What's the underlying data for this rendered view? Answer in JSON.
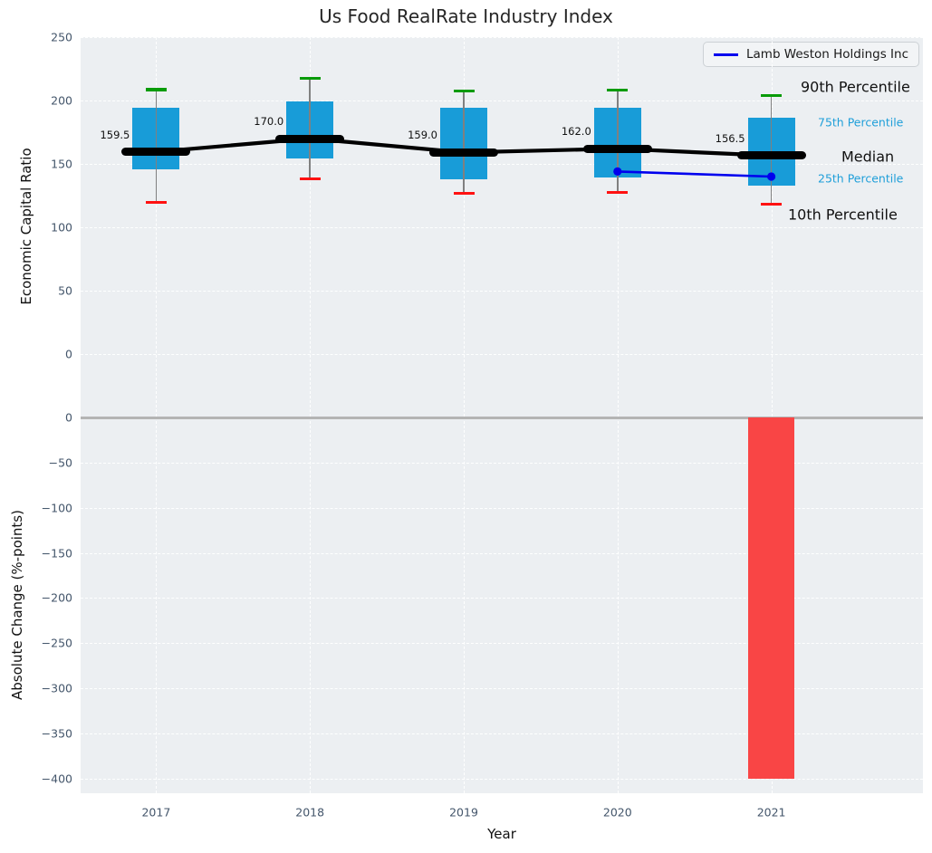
{
  "figure": {
    "title": "Us Food RealRate Industry Index",
    "background": "#ffffff",
    "axes_background": "#eceff2"
  },
  "chart_data": [
    {
      "type": "box",
      "title": "Us Food RealRate Industry Index",
      "ylabel": "Economic Capital Ratio",
      "ylim": [
        -50,
        250
      ],
      "yticks": [
        250,
        200,
        150,
        100,
        50,
        0
      ],
      "categories": [
        "2017",
        "2018",
        "2019",
        "2020",
        "2021"
      ],
      "grid": true,
      "legend_position": "upper right",
      "legend_entries": [
        "Lamb Weston Holdings Inc"
      ],
      "boxes": [
        {
          "category": "2017",
          "p90": 208.5,
          "p75": 194.5,
          "median": 159.5,
          "p25": 146,
          "p10": 119.5
        },
        {
          "category": "2018",
          "p90": 217.5,
          "p75": 199.5,
          "median": 170.0,
          "p25": 154,
          "p10": 138
        },
        {
          "category": "2019",
          "p90": 207.5,
          "p75": 194,
          "median": 159.0,
          "p25": 137.5,
          "p10": 127
        },
        {
          "category": "2020",
          "p90": 208,
          "p75": 194.5,
          "median": 162.0,
          "p25": 139.5,
          "p10": 127.5
        },
        {
          "category": "2021",
          "p90": 204,
          "p75": 186.5,
          "median": 156.5,
          "p25": 132.5,
          "p10": 118
        }
      ],
      "median_labels": [
        "159.5",
        "170.0",
        "159.0",
        "162.0",
        "156.5"
      ],
      "series": [
        {
          "name": "Median",
          "x": [
            "2017",
            "2018",
            "2019",
            "2020",
            "2021"
          ],
          "values": [
            159.5,
            170.0,
            159.0,
            162.0,
            156.5
          ],
          "color": "#000000"
        },
        {
          "name": "Lamb Weston Holdings Inc",
          "x": [
            "2020",
            "2021"
          ],
          "values": [
            144,
            140
          ],
          "color": "#0000ee"
        }
      ],
      "annotations": [
        {
          "text": "90th Percentile",
          "style": "large"
        },
        {
          "text": "75th Percentile",
          "style": "small-blue"
        },
        {
          "text": "Median",
          "style": "large"
        },
        {
          "text": "25th Percentile",
          "style": "small-blue"
        },
        {
          "text": "10th Percentile",
          "style": "large"
        }
      ],
      "colors": {
        "box_fill": "#189cd8",
        "whisker": "#808080",
        "cap_top": "#089b08",
        "cap_bottom": "#ff1111",
        "median": "#000000",
        "company_line": "#0000ee",
        "annotation_blue": "#1f9fd9"
      }
    },
    {
      "type": "bar",
      "xlabel": "Year",
      "ylabel": "Absolute Change (%-points)",
      "categories": [
        "2017",
        "2018",
        "2019",
        "2020",
        "2021"
      ],
      "values": [
        0,
        0,
        0,
        0,
        -400
      ],
      "ylim": [
        -417,
        0
      ],
      "yticks": [
        0,
        -50,
        -100,
        -150,
        -200,
        -250,
        -300,
        -350,
        -400
      ],
      "grid": true,
      "bar_color": "#f94545",
      "zero_line_color": "#b4b4b4"
    }
  ]
}
